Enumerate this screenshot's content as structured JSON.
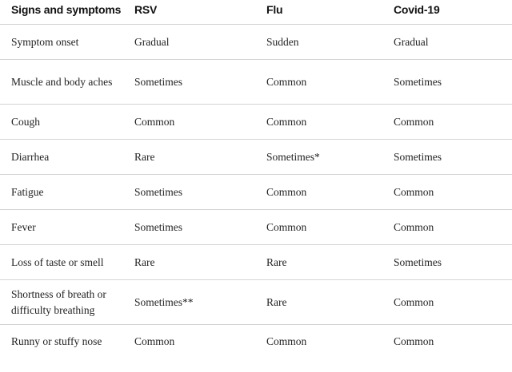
{
  "table": {
    "headers": [
      "Signs and symptoms",
      "RSV",
      "Flu",
      "Covid-19"
    ],
    "rows": [
      [
        "Symptom onset",
        "Gradual",
        "Sudden",
        "Gradual"
      ],
      [
        "Muscle and body aches",
        "Sometimes",
        "Common",
        "Sometimes"
      ],
      [
        "Cough",
        "Common",
        "Common",
        "Common"
      ],
      [
        "Diarrhea",
        "Rare",
        "Sometimes*",
        "Sometimes"
      ],
      [
        "Fatigue",
        "Sometimes",
        "Common",
        "Common"
      ],
      [
        "Fever",
        "Sometimes",
        "Common",
        "Common"
      ],
      [
        "Loss of taste or smell",
        "Rare",
        "Rare",
        "Sometimes"
      ],
      [
        "Shortness of breath or difficulty breathing",
        "Sometimes**",
        "Rare",
        "Common"
      ],
      [
        "Runny or stuffy nose",
        "Common",
        "Common",
        "Common"
      ]
    ]
  }
}
